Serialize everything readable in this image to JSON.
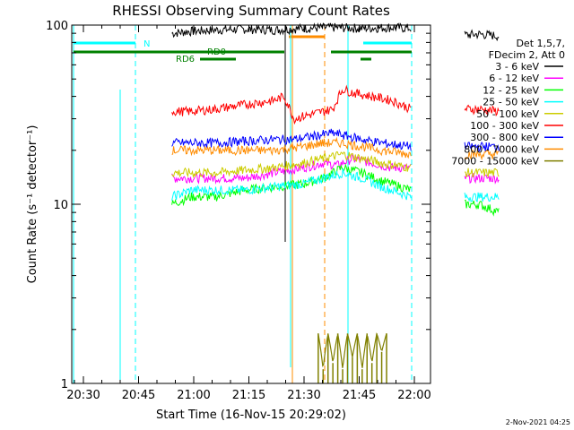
{
  "chart_data": {
    "type": "line",
    "title": "RHESSI Observing Summary Count Rates",
    "xlabel": "Start Time (16-Nov-15 20:29:02)",
    "ylabel": "Count Rate (s⁻¹ detector⁻¹)",
    "y_scale": "log",
    "ylim": [
      1,
      100
    ],
    "xlim_minutes": [
      20.5,
      94
    ],
    "x_ticks": [
      "20:30",
      "20:45",
      "21:00",
      "21:15",
      "21:30",
      "21:45",
      "22:00"
    ],
    "y_ticks": [
      "1",
      "10",
      "100"
    ],
    "legend_header": [
      "Det 1,5,7,",
      "FDecim 2, Att 0"
    ],
    "legend_position": "right",
    "series": [
      {
        "name": "3 - 6 keV",
        "color": "#000000",
        "segments": [
          [
            [
              41,
              90
            ],
            [
              44,
              92
            ],
            [
              50,
              94
            ],
            [
              56,
              95
            ],
            [
              62,
              94
            ],
            [
              68,
              96
            ],
            [
              74,
              97
            ],
            [
              80,
              96
            ],
            [
              86,
              97
            ],
            [
              90,
              96
            ]
          ],
          [
            [
              101,
              88
            ],
            [
              104,
              89
            ],
            [
              108,
              87
            ]
          ]
        ]
      },
      {
        "name": "6 - 12 keV",
        "color": "#ff00ff",
        "segments": [
          [
            [
              41,
              14
            ],
            [
              45,
              14
            ],
            [
              50,
              14
            ],
            [
              56,
              14
            ],
            [
              62,
              15
            ],
            [
              68,
              16
            ],
            [
              72,
              17
            ],
            [
              75,
              16.5
            ],
            [
              78,
              18
            ],
            [
              82,
              17
            ],
            [
              86,
              16
            ],
            [
              90,
              16
            ]
          ],
          [
            [
              101,
              14
            ],
            [
              104,
              14
            ],
            [
              108,
              14
            ]
          ]
        ]
      },
      {
        "name": "12 - 25 keV",
        "color": "#00ff00",
        "segments": [
          [
            [
              41,
              10
            ],
            [
              45,
              11
            ],
            [
              50,
              11
            ],
            [
              56,
              12
            ],
            [
              62,
              12.5
            ],
            [
              68,
              13
            ],
            [
              72,
              14
            ],
            [
              76,
              16
            ],
            [
              80,
              15
            ],
            [
              84,
              13.5
            ],
            [
              90,
              12
            ]
          ],
          [
            [
              101,
              10
            ],
            [
              104,
              10
            ],
            [
              108,
              9
            ]
          ]
        ]
      },
      {
        "name": "25 - 50 keV",
        "color": "#00ffff",
        "segments": [
          [
            [
              41,
              11
            ],
            [
              45,
              12
            ],
            [
              50,
              12
            ],
            [
              56,
              12
            ],
            [
              62,
              12.5
            ],
            [
              68,
              13
            ],
            [
              72,
              14
            ],
            [
              76,
              15
            ],
            [
              80,
              14
            ],
            [
              84,
              12.5
            ],
            [
              90,
              11
            ]
          ],
          [
            [
              101,
              11
            ],
            [
              104,
              11
            ],
            [
              108,
              11
            ]
          ]
        ]
      },
      {
        "name": "50 - 100 keV",
        "color": "#cccc00",
        "segments": [
          [
            [
              41,
              15
            ],
            [
              45,
              15
            ],
            [
              50,
              15
            ],
            [
              56,
              15.5
            ],
            [
              62,
              16
            ],
            [
              68,
              17
            ],
            [
              72,
              18
            ],
            [
              76,
              19
            ],
            [
              80,
              18
            ],
            [
              84,
              17
            ],
            [
              90,
              16
            ]
          ],
          [
            [
              101,
              15
            ],
            [
              104,
              15
            ],
            [
              108,
              15
            ]
          ]
        ]
      },
      {
        "name": "100 - 300 keV",
        "color": "#ff0000",
        "segments": [
          [
            [
              41,
              33
            ],
            [
              45,
              33
            ],
            [
              50,
              34
            ],
            [
              56,
              36
            ],
            [
              62,
              38
            ],
            [
              64,
              40
            ],
            [
              66,
              30
            ],
            [
              70,
              32
            ],
            [
              74,
              34
            ],
            [
              76,
              44
            ],
            [
              78,
              42
            ],
            [
              82,
              40
            ],
            [
              86,
              38
            ],
            [
              90,
              34
            ]
          ],
          [
            [
              101,
              34
            ],
            [
              104,
              34
            ],
            [
              108,
              33
            ]
          ]
        ]
      },
      {
        "name": "300 - 800 keV",
        "color": "#0000ff",
        "segments": [
          [
            [
              41,
              22
            ],
            [
              45,
              22
            ],
            [
              50,
              22
            ],
            [
              56,
              22.5
            ],
            [
              62,
              23
            ],
            [
              66,
              23
            ],
            [
              70,
              24
            ],
            [
              74,
              25
            ],
            [
              77,
              24
            ],
            [
              80,
              23
            ],
            [
              84,
              22
            ],
            [
              90,
              21
            ]
          ],
          [
            [
              101,
              21
            ],
            [
              104,
              21
            ],
            [
              108,
              21
            ]
          ]
        ]
      },
      {
        "name": "800 - 7000 keV",
        "color": "#ff8c00",
        "segments": [
          [
            [
              41,
              20
            ],
            [
              45,
              20
            ],
            [
              50,
              20
            ],
            [
              56,
              20
            ],
            [
              62,
              20
            ],
            [
              68,
              21
            ],
            [
              72,
              22
            ],
            [
              76,
              22
            ],
            [
              80,
              21
            ],
            [
              84,
              20
            ],
            [
              90,
              19
            ]
          ],
          [
            [
              101,
              19
            ],
            [
              104,
              19
            ],
            [
              108,
              19
            ]
          ]
        ]
      },
      {
        "name": "7000 - 15000 keV",
        "color": "#808000",
        "segments": [
          [
            [
              71,
              1.9
            ],
            [
              72,
              1.2
            ],
            [
              73,
              1.9
            ],
            [
              74,
              1.3
            ],
            [
              75,
              1.9
            ],
            [
              76,
              1.2
            ],
            [
              77,
              1.9
            ],
            [
              78,
              1.4
            ],
            [
              79,
              1.9
            ],
            [
              80,
              1.2
            ],
            [
              81,
              1.9
            ],
            [
              82,
              1.3
            ],
            [
              83,
              1.9
            ],
            [
              84,
              1.5
            ],
            [
              85,
              1.9
            ]
          ]
        ]
      }
    ],
    "annotations": [
      "N",
      "RD0",
      "RD6"
    ]
  },
  "footer": {
    "date": "2-Nov-2021 04:25"
  }
}
